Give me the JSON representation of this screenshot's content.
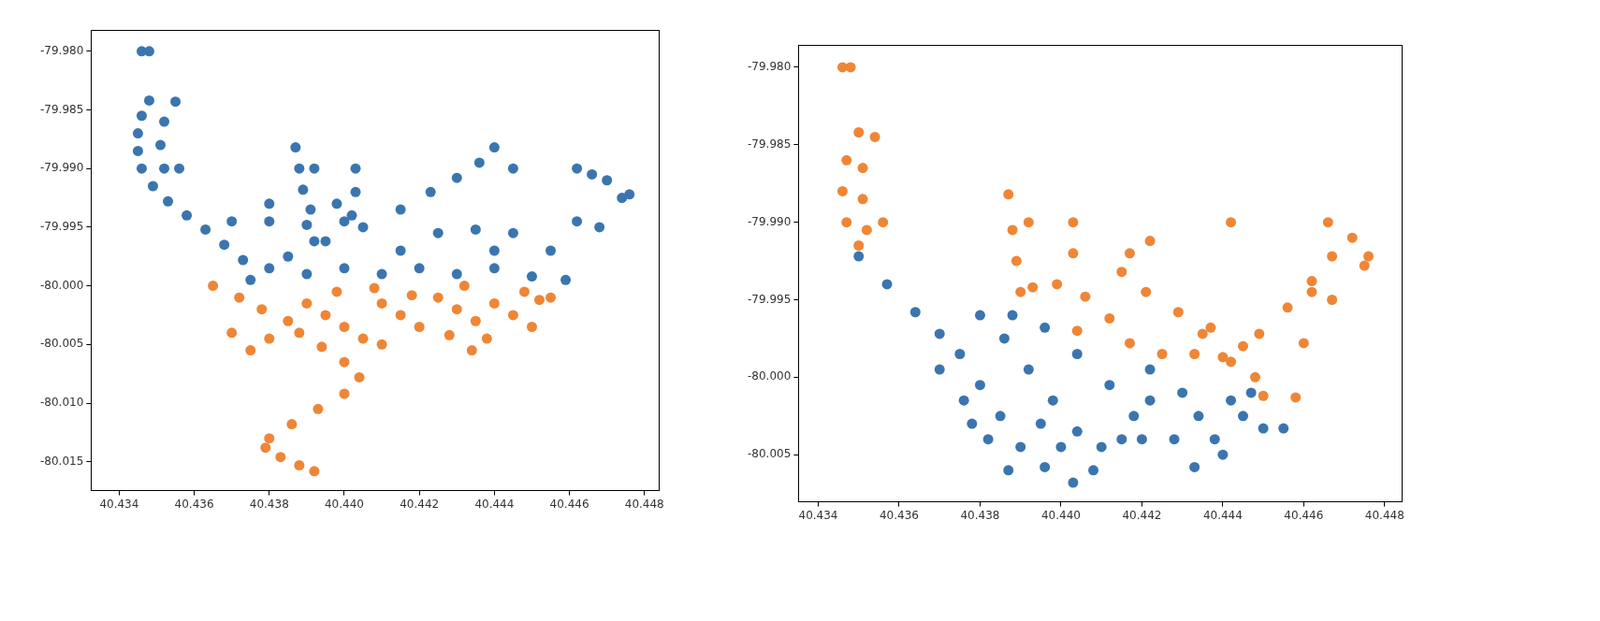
{
  "chart_data": [
    {
      "type": "scatter",
      "grid": false,
      "marker": "circle",
      "xlim": [
        40.43325,
        40.44838
      ],
      "xticks": [
        40.434,
        40.436,
        40.438,
        {
          "value": 40.44,
          "label": "40.440"
        },
        40.442,
        40.444,
        40.446,
        40.448
      ],
      "ylim": [
        -80.01746,
        -79.9782
      ],
      "yticks": [
        {
          "value": -79.98,
          "label": "-79.980"
        },
        -79.985,
        {
          "value": -79.99,
          "label": "-79.990"
        },
        -79.995,
        {
          "value": -80.0,
          "label": "-80.000"
        },
        -80.005,
        {
          "value": -80.01,
          "label": "-80.010"
        },
        -80.015
      ],
      "series": [
        {
          "color": "#3b75af",
          "x": [
            40.4346,
            40.4348,
            40.4348,
            40.4346,
            40.4345,
            40.4345,
            40.4346,
            40.4349,
            40.4353,
            40.4358,
            40.4363,
            40.4368,
            40.4373,
            40.4355,
            40.4352,
            40.4351,
            40.4352,
            40.4356,
            40.4387,
            40.4388,
            40.4389,
            40.4391,
            40.4392,
            40.4403,
            40.4403,
            40.4402,
            40.4398,
            40.4375,
            40.4385,
            40.4395,
            40.4405,
            40.4415,
            40.4423,
            40.443,
            40.4436,
            40.444,
            40.4445,
            40.437,
            40.438,
            40.439,
            40.44,
            40.438,
            40.439,
            40.44,
            40.441,
            40.442,
            40.443,
            40.444,
            40.445,
            40.4425,
            40.4435,
            40.4445,
            40.4415,
            40.444,
            40.4462,
            40.4466,
            40.447,
            40.4476,
            40.4474,
            40.4462,
            40.4468,
            40.4459,
            40.4455,
            40.438,
            40.4392
          ],
          "values": [
            -79.98,
            -79.98,
            -79.9842,
            -79.9855,
            -79.987,
            -79.9885,
            -79.99,
            -79.9915,
            -79.9928,
            -79.994,
            -79.9952,
            -79.9965,
            -79.9978,
            -79.9843,
            -79.986,
            -79.988,
            -79.99,
            -79.99,
            -79.9882,
            -79.99,
            -79.9918,
            -79.9935,
            -79.99,
            -79.99,
            -79.992,
            -79.994,
            -79.993,
            -79.9995,
            -79.9975,
            -79.9962,
            -79.995,
            -79.9935,
            -79.992,
            -79.9908,
            -79.9895,
            -79.9882,
            -79.99,
            -79.9945,
            -79.9945,
            -79.9948,
            -79.9945,
            -79.9985,
            -79.999,
            -79.9985,
            -79.999,
            -79.9985,
            -79.999,
            -79.9985,
            -79.9992,
            -79.9955,
            -79.9952,
            -79.9955,
            -79.997,
            -79.997,
            -79.99,
            -79.9905,
            -79.991,
            -79.9922,
            -79.9925,
            -79.9945,
            -79.995,
            -79.9995,
            -79.997,
            -79.993,
            -79.9962
          ]
        },
        {
          "color": "#ef8636",
          "x": [
            40.4365,
            40.4372,
            40.4378,
            40.4385,
            40.438,
            40.439,
            40.4395,
            40.44,
            40.4405,
            40.4398,
            40.441,
            40.4415,
            40.442,
            40.4425,
            40.443,
            40.4435,
            40.4438,
            40.4434,
            40.444,
            40.4445,
            40.4448,
            40.4452,
            40.445,
            40.4455,
            40.4388,
            40.4394,
            40.44,
            40.4404,
            40.44,
            40.4393,
            40.4386,
            40.438,
            40.4379,
            40.4383,
            40.4388,
            40.4392,
            40.4375,
            40.437,
            40.441,
            40.4428,
            40.4418,
            40.4408,
            40.4432
          ],
          "values": [
            -80.0,
            -80.001,
            -80.002,
            -80.003,
            -80.0045,
            -80.0015,
            -80.0025,
            -80.0035,
            -80.0045,
            -80.0005,
            -80.0015,
            -80.0025,
            -80.0035,
            -80.001,
            -80.002,
            -80.003,
            -80.0045,
            -80.0055,
            -80.0015,
            -80.0025,
            -80.0005,
            -80.0012,
            -80.0035,
            -80.001,
            -80.004,
            -80.0052,
            -80.0065,
            -80.0078,
            -80.0092,
            -80.0105,
            -80.0118,
            -80.013,
            -80.0138,
            -80.0146,
            -80.0153,
            -80.0158,
            -80.0055,
            -80.004,
            -80.005,
            -80.0042,
            -80.0008,
            -80.0002,
            -80.0
          ]
        }
      ]
    },
    {
      "type": "scatter",
      "grid": false,
      "marker": "circle",
      "xlim": [
        40.43351,
        40.44842
      ],
      "xticks": [
        40.434,
        40.436,
        40.438,
        {
          "value": 40.44,
          "label": "40.440"
        },
        40.442,
        40.444,
        40.446,
        40.448
      ],
      "ylim": [
        -80.00804,
        -79.97857
      ],
      "yticks": [
        {
          "value": -79.98,
          "label": "-79.980"
        },
        -79.985,
        {
          "value": -79.99,
          "label": "-79.990"
        },
        -79.995,
        {
          "value": -80.0,
          "label": "-80.000"
        },
        -80.005
      ],
      "series": [
        {
          "color": "#ef8636",
          "x": [
            40.4346,
            40.4348,
            40.435,
            40.4347,
            40.4346,
            40.4347,
            40.435,
            40.4354,
            40.4351,
            40.4351,
            40.4352,
            40.4356,
            40.4387,
            40.4388,
            40.4389,
            40.439,
            40.4392,
            40.4393,
            40.4403,
            40.4403,
            40.4399,
            40.4406,
            40.4412,
            40.4417,
            40.4404,
            40.4422,
            40.4417,
            40.4415,
            40.4421,
            40.4429,
            40.4437,
            40.4445,
            40.4448,
            40.445,
            40.4425,
            40.4433,
            40.444,
            40.4442,
            40.4449,
            40.4456,
            40.4462,
            40.4467,
            40.4472,
            40.4466,
            40.4476,
            40.4475,
            40.4467,
            40.4462,
            40.446,
            40.4458,
            40.4442,
            40.4435
          ],
          "values": [
            -79.98,
            -79.98,
            -79.9842,
            -79.986,
            -79.988,
            -79.99,
            -79.9915,
            -79.9845,
            -79.9865,
            -79.9885,
            -79.9905,
            -79.99,
            -79.9882,
            -79.9905,
            -79.9925,
            -79.9945,
            -79.99,
            -79.9942,
            -79.99,
            -79.992,
            -79.994,
            -79.9948,
            -79.9962,
            -79.9978,
            -79.997,
            -79.9912,
            -79.992,
            -79.9932,
            -79.9945,
            -79.9958,
            -79.9968,
            -79.998,
            -80.0,
            -80.0012,
            -79.9985,
            -79.9985,
            -79.9987,
            -79.999,
            -79.9972,
            -79.9955,
            -79.9938,
            -79.9922,
            -79.991,
            -79.99,
            -79.9922,
            -79.9928,
            -79.995,
            -79.9945,
            -79.9978,
            -80.0013,
            -79.99,
            -79.9972
          ]
        },
        {
          "color": "#3b75af",
          "x": [
            40.435,
            40.4357,
            40.4364,
            40.437,
            40.4375,
            40.438,
            40.4385,
            40.439,
            40.4396,
            40.4403,
            40.437,
            40.4376,
            40.4382,
            40.4387,
            40.438,
            40.4386,
            40.4392,
            40.4398,
            40.4404,
            40.441,
            40.4388,
            40.4396,
            40.4404,
            40.4412,
            40.4418,
            40.4422,
            40.4422,
            40.442,
            40.4415,
            40.44,
            40.4395,
            40.443,
            40.4434,
            40.4438,
            40.4433,
            40.4442,
            40.4445,
            40.444,
            40.4447,
            40.445,
            40.4455,
            40.4428,
            40.4408,
            40.4378
          ],
          "values": [
            -79.9922,
            -79.994,
            -79.9958,
            -79.9972,
            -79.9985,
            -80.0005,
            -80.0025,
            -80.0045,
            -80.0058,
            -80.0068,
            -79.9995,
            -80.0015,
            -80.004,
            -80.006,
            -79.996,
            -79.9975,
            -79.9995,
            -80.0015,
            -80.0035,
            -80.0045,
            -79.996,
            -79.9968,
            -79.9985,
            -80.0005,
            -80.0025,
            -79.9995,
            -80.0015,
            -80.004,
            -80.004,
            -80.0045,
            -80.003,
            -80.001,
            -80.0025,
            -80.004,
            -80.0058,
            -80.0015,
            -80.0025,
            -80.005,
            -80.001,
            -80.0033,
            -80.0033,
            -80.004,
            -80.006,
            -80.003
          ]
        }
      ]
    }
  ]
}
